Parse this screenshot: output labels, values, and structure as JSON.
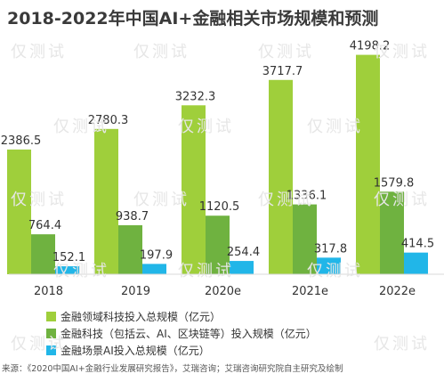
{
  "title": "2018-2022年中国AI+金融相关市场规模和预测",
  "chart_data": {
    "type": "bar",
    "categories": [
      "2018",
      "2019",
      "2020e",
      "2021e",
      "2022e"
    ],
    "series": [
      {
        "name": "金融领域科技投入总规模（亿元）",
        "values": [
          2386.5,
          2780.3,
          3232.3,
          3717.7,
          4198.2
        ],
        "labels": [
          "2386.5",
          "2780.3",
          "3232.3",
          "3717.7",
          "4198.2"
        ],
        "color": "#9fcf3b"
      },
      {
        "name": "金融科技（包括云、AI、区块链等）投入规模（亿元）",
        "values": [
          764.4,
          938.7,
          1120.5,
          1336.1,
          1579.8
        ],
        "labels": [
          "764.4",
          "938.7",
          "1120.5",
          "1336.1",
          "1579.8"
        ],
        "color": "#6fb240"
      },
      {
        "name": "金融场景AI投入总规模（亿元）",
        "values": [
          152.1,
          197.9,
          254.4,
          317.8,
          414.5
        ],
        "labels": [
          "152.1",
          "197.9",
          "254.4",
          "317.8",
          "414.5"
        ],
        "color": "#21b6e8"
      }
    ],
    "ylim": [
      0,
      4600
    ]
  },
  "source": "来源：《2020中国AI+金融行业发展研究报告》，艾瑞咨询；艾瑞咨询研究院自主研究及绘制",
  "watermark": "仅测试"
}
